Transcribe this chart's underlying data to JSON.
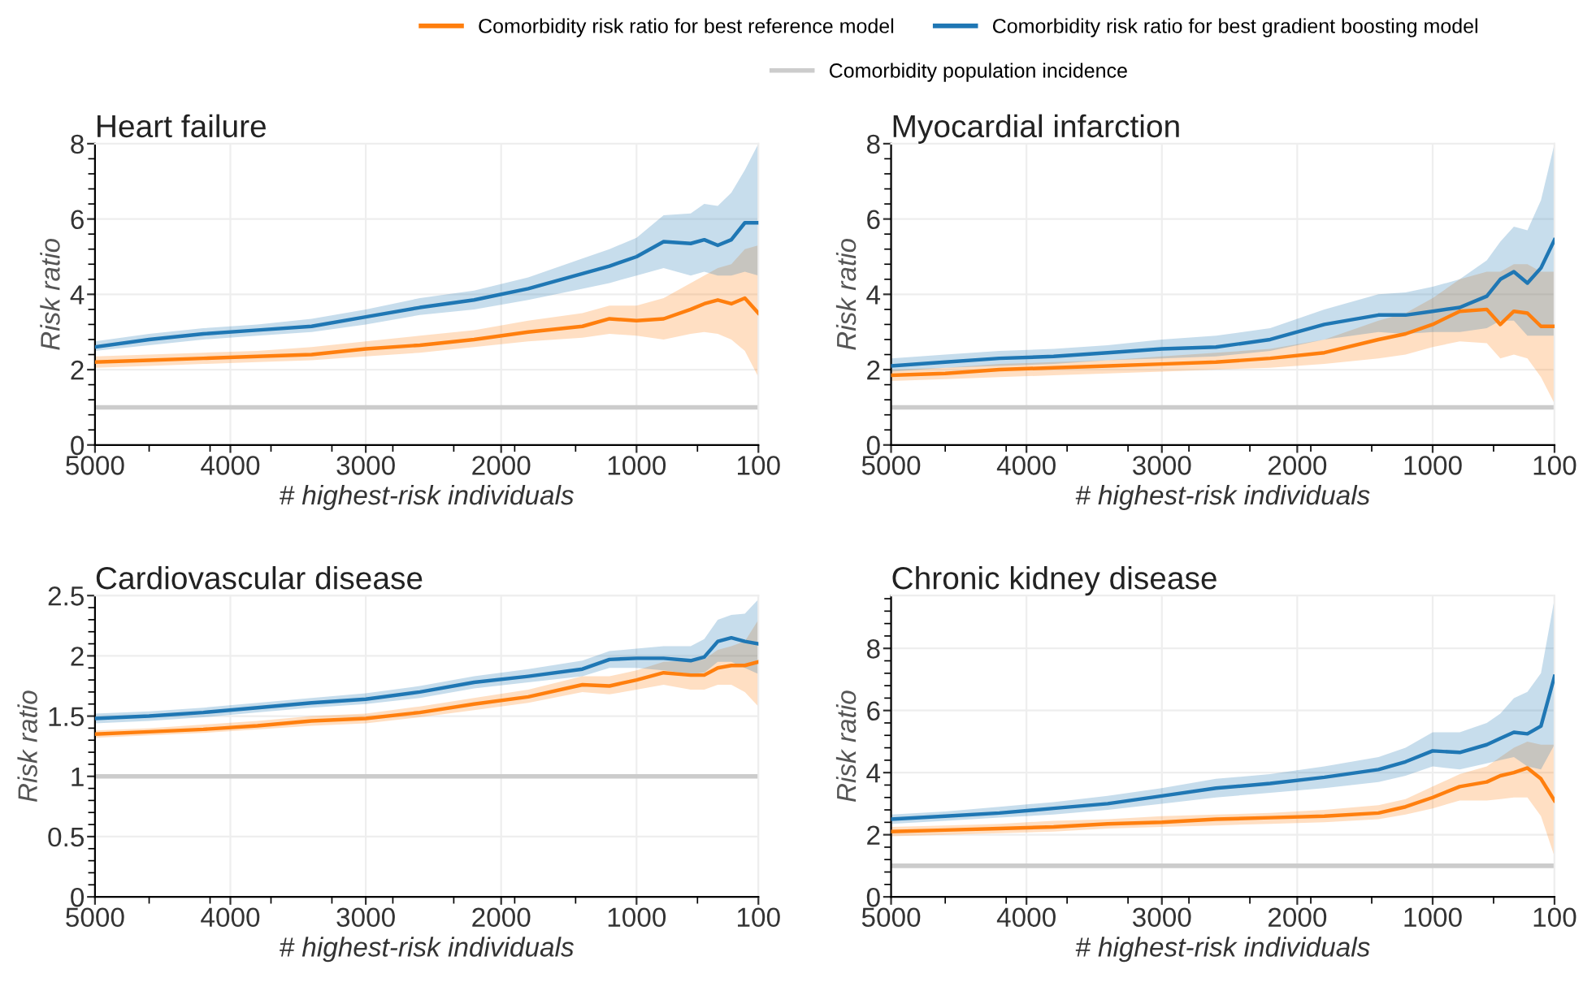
{
  "chart_data": [
    {
      "type": "line",
      "title": "Heart failure",
      "xlabel": "# highest-risk individuals",
      "ylabel": "Risk ratio",
      "xlim": [
        5000,
        100
      ],
      "xticks": [
        5000,
        4000,
        3000,
        2000,
        1000,
        100
      ],
      "ylim": [
        0,
        8
      ],
      "yticks": [
        0,
        2,
        4,
        6,
        8
      ],
      "grid": true,
      "legend": "top",
      "x": [
        5000,
        4600,
        4200,
        3800,
        3400,
        3000,
        2600,
        2200,
        1800,
        1400,
        1200,
        1000,
        800,
        600,
        500,
        400,
        300,
        200,
        100
      ],
      "ref_lines": [
        {
          "axis": "y",
          "value": 1,
          "label": "Comorbidity population incidence",
          "color": "#cccccc"
        }
      ],
      "series": [
        {
          "name": "Comorbidity risk ratio for best reference model",
          "color": "#ff7f0e",
          "values": [
            2.2,
            2.25,
            2.3,
            2.35,
            2.4,
            2.55,
            2.65,
            2.8,
            3.0,
            3.15,
            3.35,
            3.3,
            3.35,
            3.6,
            3.75,
            3.85,
            3.75,
            3.9,
            3.5
          ],
          "lower": [
            2.05,
            2.1,
            2.15,
            2.2,
            2.25,
            2.35,
            2.45,
            2.6,
            2.75,
            2.85,
            2.95,
            2.9,
            2.8,
            2.95,
            3.0,
            2.95,
            2.8,
            2.5,
            1.8
          ],
          "upper": [
            2.35,
            2.4,
            2.45,
            2.5,
            2.6,
            2.75,
            2.9,
            3.05,
            3.3,
            3.5,
            3.7,
            3.7,
            3.9,
            4.3,
            4.5,
            4.7,
            4.8,
            5.2,
            5.3
          ]
        },
        {
          "name": "Comorbidity risk ratio for best gradient boosting model",
          "color": "#1f77b4",
          "values": [
            2.6,
            2.8,
            2.95,
            3.05,
            3.15,
            3.4,
            3.65,
            3.85,
            4.15,
            4.55,
            4.75,
            5.0,
            5.4,
            5.35,
            5.45,
            5.3,
            5.45,
            5.9,
            5.9
          ],
          "lower": [
            2.5,
            2.65,
            2.8,
            2.9,
            3.0,
            3.2,
            3.45,
            3.6,
            3.85,
            4.15,
            4.3,
            4.5,
            4.7,
            4.5,
            4.6,
            4.5,
            4.5,
            4.6,
            4.5
          ],
          "upper": [
            2.75,
            2.95,
            3.1,
            3.2,
            3.35,
            3.6,
            3.9,
            4.1,
            4.45,
            4.95,
            5.2,
            5.5,
            6.1,
            6.15,
            6.4,
            6.35,
            6.7,
            7.3,
            8.0
          ]
        }
      ]
    },
    {
      "type": "line",
      "title": "Myocardial infarction",
      "xlabel": "# highest-risk individuals",
      "ylabel": "Risk ratio",
      "xlim": [
        5000,
        100
      ],
      "xticks": [
        5000,
        4000,
        3000,
        2000,
        1000,
        100
      ],
      "ylim": [
        0,
        8
      ],
      "yticks": [
        0,
        2,
        4,
        6,
        8
      ],
      "grid": true,
      "legend": "top",
      "x": [
        5000,
        4600,
        4200,
        3800,
        3400,
        3000,
        2600,
        2200,
        1800,
        1400,
        1200,
        1000,
        800,
        600,
        500,
        400,
        300,
        200,
        100
      ],
      "ref_lines": [
        {
          "axis": "y",
          "value": 1,
          "color": "#cccccc"
        }
      ],
      "series": [
        {
          "name": "Comorbidity risk ratio for best reference model",
          "color": "#ff7f0e",
          "values": [
            1.85,
            1.9,
            2.0,
            2.05,
            2.1,
            2.15,
            2.2,
            2.3,
            2.45,
            2.8,
            2.95,
            3.2,
            3.55,
            3.6,
            3.2,
            3.55,
            3.5,
            3.15,
            3.15
          ],
          "lower": [
            1.7,
            1.75,
            1.8,
            1.85,
            1.9,
            1.95,
            2.0,
            2.05,
            2.15,
            2.3,
            2.4,
            2.6,
            2.75,
            2.7,
            2.3,
            2.4,
            2.3,
            1.8,
            1.1
          ],
          "upper": [
            2.0,
            2.05,
            2.15,
            2.2,
            2.25,
            2.35,
            2.45,
            2.55,
            2.8,
            3.3,
            3.5,
            3.9,
            4.4,
            4.6,
            4.6,
            4.8,
            4.8,
            4.6,
            4.6
          ]
        },
        {
          "name": "Comorbidity risk ratio for best gradient boosting model",
          "color": "#1f77b4",
          "values": [
            2.1,
            2.2,
            2.3,
            2.35,
            2.45,
            2.55,
            2.6,
            2.8,
            3.2,
            3.45,
            3.45,
            3.55,
            3.65,
            3.95,
            4.4,
            4.6,
            4.3,
            4.7,
            5.45
          ],
          "lower": [
            1.95,
            2.05,
            2.1,
            2.15,
            2.25,
            2.3,
            2.35,
            2.5,
            2.8,
            3.0,
            2.95,
            3.0,
            3.0,
            3.1,
            3.3,
            3.3,
            2.9,
            2.9,
            2.9
          ],
          "upper": [
            2.3,
            2.4,
            2.5,
            2.55,
            2.65,
            2.8,
            2.9,
            3.1,
            3.6,
            4.0,
            4.05,
            4.2,
            4.4,
            4.9,
            5.4,
            5.8,
            5.7,
            6.5,
            8.0
          ]
        }
      ]
    },
    {
      "type": "line",
      "title": "Cardiovascular disease",
      "xlabel": "# highest-risk individuals",
      "ylabel": "Risk ratio",
      "xlim": [
        5000,
        100
      ],
      "xticks": [
        5000,
        4000,
        3000,
        2000,
        1000,
        100
      ],
      "ylim": [
        0,
        2.5
      ],
      "yticks": [
        0,
        0.5,
        1,
        1.5,
        2,
        2.5
      ],
      "grid": true,
      "legend": "top",
      "x": [
        5000,
        4600,
        4200,
        3800,
        3400,
        3000,
        2600,
        2200,
        1800,
        1400,
        1200,
        1000,
        800,
        600,
        500,
        400,
        300,
        200,
        100
      ],
      "ref_lines": [
        {
          "axis": "y",
          "value": 1,
          "color": "#cccccc"
        }
      ],
      "series": [
        {
          "name": "Comorbidity risk ratio for best reference model",
          "color": "#ff7f0e",
          "values": [
            1.35,
            1.37,
            1.39,
            1.42,
            1.46,
            1.48,
            1.53,
            1.6,
            1.66,
            1.76,
            1.75,
            1.8,
            1.86,
            1.84,
            1.84,
            1.9,
            1.92,
            1.92,
            1.95
          ],
          "lower": [
            1.32,
            1.34,
            1.36,
            1.39,
            1.42,
            1.44,
            1.49,
            1.55,
            1.61,
            1.7,
            1.68,
            1.72,
            1.76,
            1.72,
            1.72,
            1.76,
            1.76,
            1.7,
            1.58
          ],
          "upper": [
            1.38,
            1.4,
            1.43,
            1.46,
            1.5,
            1.52,
            1.58,
            1.65,
            1.72,
            1.83,
            1.83,
            1.88,
            1.95,
            1.96,
            1.97,
            2.05,
            2.08,
            2.12,
            2.3
          ]
        },
        {
          "name": "Comorbidity risk ratio for best gradient boosting model",
          "color": "#1f77b4",
          "values": [
            1.48,
            1.5,
            1.53,
            1.57,
            1.61,
            1.64,
            1.7,
            1.78,
            1.83,
            1.89,
            1.97,
            1.98,
            1.98,
            1.96,
            1.99,
            2.12,
            2.15,
            2.12,
            2.1
          ],
          "lower": [
            1.44,
            1.46,
            1.49,
            1.53,
            1.57,
            1.6,
            1.65,
            1.73,
            1.78,
            1.83,
            1.9,
            1.9,
            1.88,
            1.85,
            1.86,
            1.95,
            1.95,
            1.9,
            1.85
          ],
          "upper": [
            1.52,
            1.54,
            1.57,
            1.61,
            1.65,
            1.69,
            1.75,
            1.83,
            1.89,
            1.96,
            2.04,
            2.06,
            2.08,
            2.08,
            2.14,
            2.3,
            2.34,
            2.35,
            2.47
          ]
        }
      ]
    },
    {
      "type": "line",
      "title": "Chronic kidney disease",
      "xlabel": "# highest-risk individuals",
      "ylabel": "Risk ratio",
      "xlim": [
        5000,
        100
      ],
      "xticks": [
        5000,
        4000,
        3000,
        2000,
        1000,
        100
      ],
      "ylim": [
        0,
        9.7
      ],
      "yticks": [
        0,
        2,
        4,
        6,
        8
      ],
      "grid": true,
      "legend": "top",
      "x": [
        5000,
        4600,
        4200,
        3800,
        3400,
        3000,
        2600,
        2200,
        1800,
        1400,
        1200,
        1000,
        800,
        600,
        500,
        400,
        300,
        200,
        100
      ],
      "ref_lines": [
        {
          "axis": "y",
          "value": 1,
          "color": "#cccccc"
        }
      ],
      "series": [
        {
          "name": "Comorbidity risk ratio for best reference model",
          "color": "#ff7f0e",
          "values": [
            2.1,
            2.15,
            2.2,
            2.25,
            2.35,
            2.4,
            2.5,
            2.55,
            2.6,
            2.7,
            2.9,
            3.2,
            3.55,
            3.7,
            3.9,
            4.0,
            4.15,
            3.8,
            3.1
          ],
          "lower": [
            1.95,
            2.0,
            2.05,
            2.1,
            2.2,
            2.25,
            2.3,
            2.35,
            2.4,
            2.5,
            2.65,
            2.85,
            3.1,
            3.1,
            3.15,
            3.2,
            3.2,
            2.6,
            1.3
          ],
          "upper": [
            2.25,
            2.3,
            2.35,
            2.45,
            2.5,
            2.6,
            2.65,
            2.7,
            2.8,
            2.95,
            3.15,
            3.55,
            3.95,
            4.2,
            4.5,
            4.8,
            5.0,
            4.9,
            4.9
          ]
        },
        {
          "name": "Comorbidity risk ratio for best gradient boosting model",
          "color": "#1f77b4",
          "values": [
            2.5,
            2.6,
            2.7,
            2.85,
            3.0,
            3.25,
            3.5,
            3.65,
            3.85,
            4.1,
            4.35,
            4.7,
            4.65,
            4.9,
            5.1,
            5.3,
            5.25,
            5.5,
            7.1
          ],
          "lower": [
            2.35,
            2.45,
            2.55,
            2.65,
            2.8,
            3.0,
            3.2,
            3.35,
            3.5,
            3.7,
            3.9,
            4.2,
            4.1,
            4.3,
            4.4,
            4.5,
            4.2,
            4.1,
            4.9
          ],
          "upper": [
            2.65,
            2.75,
            2.9,
            3.05,
            3.25,
            3.5,
            3.8,
            3.95,
            4.2,
            4.5,
            4.8,
            5.3,
            5.3,
            5.6,
            5.9,
            6.4,
            6.6,
            7.2,
            9.6
          ]
        }
      ]
    }
  ]
}
